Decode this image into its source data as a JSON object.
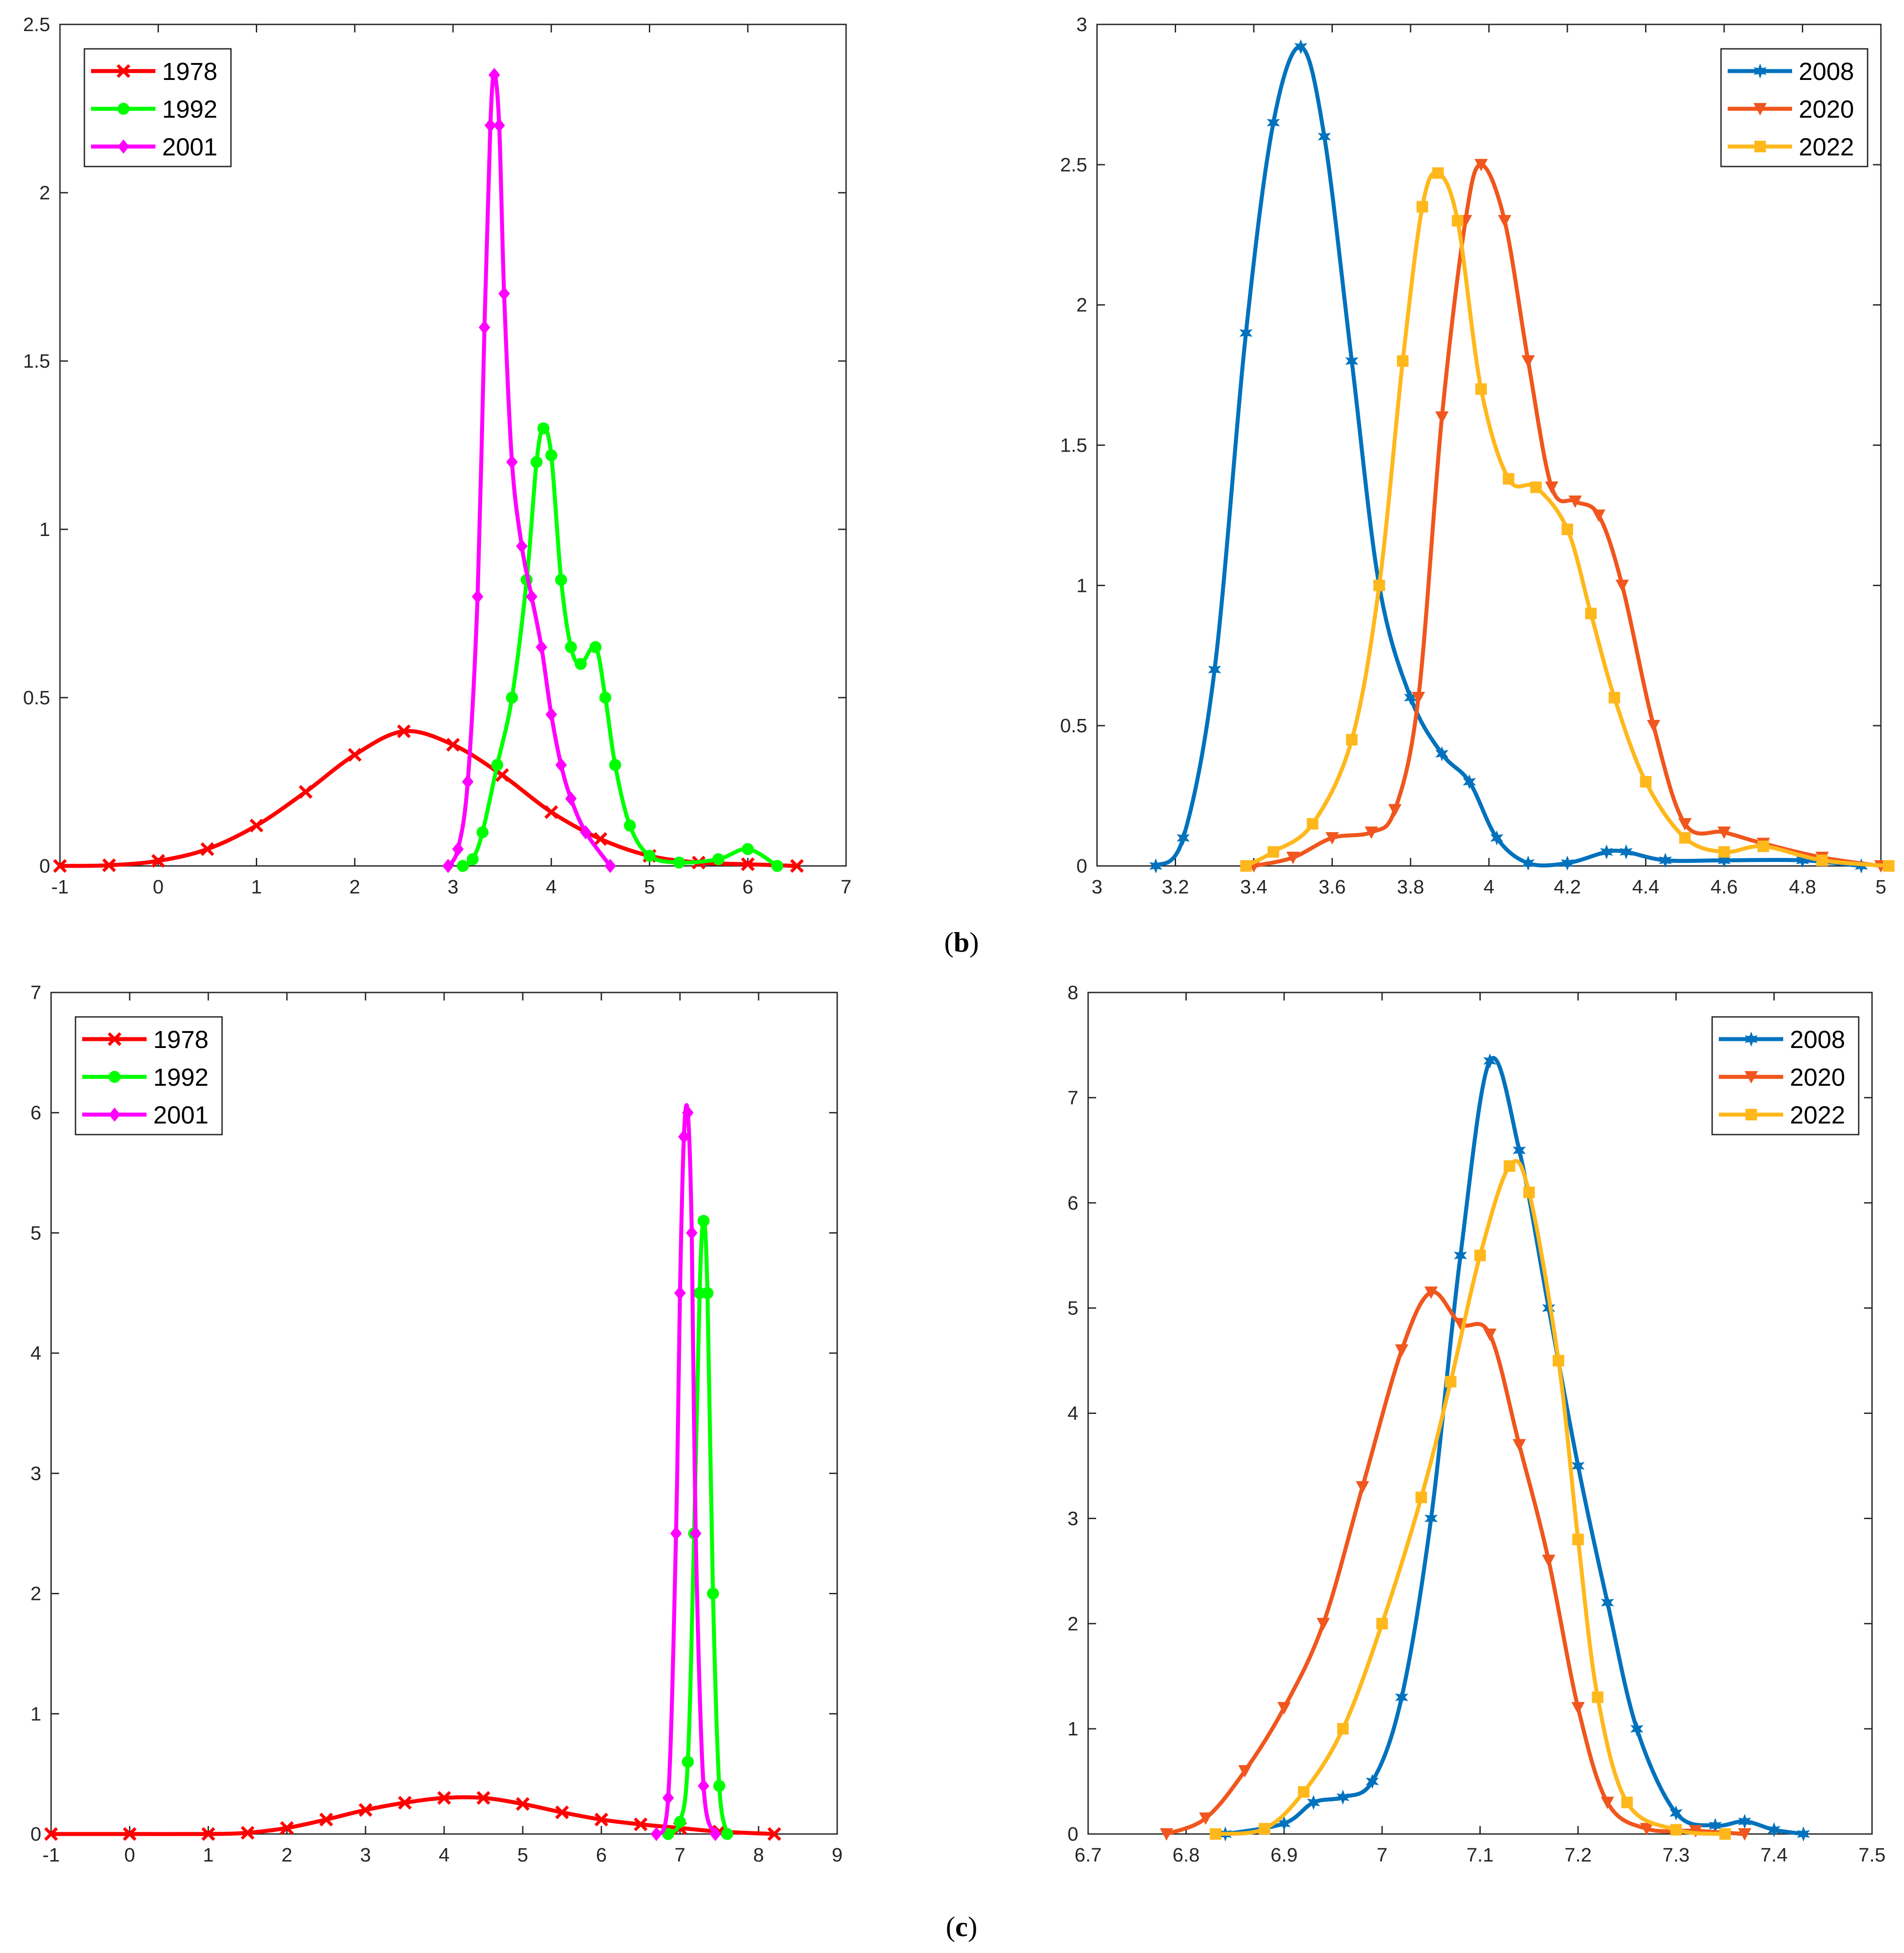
{
  "captions": {
    "b_label": "b",
    "c_label": "c"
  },
  "colors": {
    "1978": "#ff0000",
    "1992": "#00ff00",
    "2001": "#ff00ff",
    "2008": "#0072bd",
    "2020": "#f0561d",
    "2022": "#ffb81c"
  },
  "chart_data": [
    {
      "type": "line",
      "panel": "b-left",
      "title": "",
      "xlabel": "",
      "ylabel": "",
      "xlim": [
        -1,
        7
      ],
      "ylim": [
        0,
        2.5
      ],
      "xticks": [
        "-1",
        "0",
        "1",
        "2",
        "3",
        "4",
        "5",
        "6",
        "7"
      ],
      "yticks": [
        "0",
        "0.5",
        "1",
        "1.5",
        "2",
        "2.5"
      ],
      "legend_position": "top-left",
      "series": [
        {
          "name": "1978",
          "color": "#ff0000",
          "marker": "x",
          "x": [
            -1,
            -0.5,
            0,
            0.5,
            1,
            1.5,
            2,
            2.5,
            3,
            3.5,
            4,
            4.5,
            5,
            5.5,
            6,
            6.5
          ],
          "y": [
            0,
            0.002,
            0.015,
            0.05,
            0.12,
            0.22,
            0.33,
            0.4,
            0.36,
            0.27,
            0.16,
            0.08,
            0.03,
            0.01,
            0.005,
            0
          ]
        },
        {
          "name": "1992",
          "color": "#00ff00",
          "marker": "o",
          "x": [
            3.1,
            3.2,
            3.3,
            3.45,
            3.6,
            3.75,
            3.85,
            3.92,
            4.0,
            4.1,
            4.2,
            4.3,
            4.45,
            4.55,
            4.65,
            4.8,
            5.0,
            5.3,
            5.7,
            6.0,
            6.3
          ],
          "y": [
            0,
            0.02,
            0.1,
            0.3,
            0.5,
            0.85,
            1.2,
            1.3,
            1.22,
            0.85,
            0.65,
            0.6,
            0.65,
            0.5,
            0.3,
            0.12,
            0.03,
            0.01,
            0.02,
            0.05,
            0
          ]
        },
        {
          "name": "2001",
          "color": "#ff00ff",
          "marker": "d",
          "x": [
            2.95,
            3.05,
            3.15,
            3.25,
            3.32,
            3.38,
            3.42,
            3.47,
            3.52,
            3.6,
            3.7,
            3.8,
            3.9,
            4.0,
            4.1,
            4.2,
            4.35,
            4.6
          ],
          "y": [
            0,
            0.05,
            0.25,
            0.8,
            1.6,
            2.2,
            2.35,
            2.2,
            1.7,
            1.2,
            0.95,
            0.8,
            0.65,
            0.45,
            0.3,
            0.2,
            0.1,
            0
          ]
        }
      ]
    },
    {
      "type": "line",
      "panel": "b-right",
      "title": "",
      "xlabel": "",
      "ylabel": "",
      "xlim": [
        3,
        5
      ],
      "ylim": [
        0,
        3
      ],
      "xticks": [
        "3",
        "3.2",
        "3.4",
        "3.6",
        "3.8",
        "4",
        "4.2",
        "4.4",
        "4.6",
        "4.8",
        "5"
      ],
      "yticks": [
        "0",
        "0.5",
        "1",
        "1.5",
        "2",
        "2.5",
        "3"
      ],
      "legend_position": "top-right",
      "series": [
        {
          "name": "2008",
          "color": "#0072bd",
          "marker": "hexagram",
          "x": [
            3.15,
            3.22,
            3.3,
            3.38,
            3.45,
            3.52,
            3.58,
            3.65,
            3.72,
            3.8,
            3.88,
            3.95,
            4.02,
            4.1,
            4.2,
            4.3,
            4.35,
            4.45,
            4.6,
            4.8,
            4.95
          ],
          "y": [
            0,
            0.1,
            0.7,
            1.9,
            2.65,
            2.92,
            2.6,
            1.8,
            1.0,
            0.6,
            0.4,
            0.3,
            0.1,
            0.01,
            0.01,
            0.05,
            0.05,
            0.02,
            0.02,
            0.02,
            0
          ]
        },
        {
          "name": "2020",
          "color": "#f0561d",
          "marker": "v",
          "x": [
            3.4,
            3.5,
            3.6,
            3.7,
            3.76,
            3.82,
            3.88,
            3.94,
            3.98,
            4.04,
            4.1,
            4.16,
            4.22,
            4.28,
            4.34,
            4.42,
            4.5,
            4.6,
            4.7,
            4.85,
            5.0
          ],
          "y": [
            0,
            0.03,
            0.1,
            0.12,
            0.2,
            0.6,
            1.6,
            2.3,
            2.5,
            2.3,
            1.8,
            1.35,
            1.3,
            1.25,
            1.0,
            0.5,
            0.15,
            0.12,
            0.08,
            0.03,
            0
          ]
        },
        {
          "name": "2022",
          "color": "#ffb81c",
          "marker": "s",
          "x": [
            3.38,
            3.45,
            3.55,
            3.65,
            3.72,
            3.78,
            3.83,
            3.87,
            3.92,
            3.98,
            4.05,
            4.12,
            4.2,
            4.26,
            4.32,
            4.4,
            4.5,
            4.6,
            4.7,
            4.85,
            5.02
          ],
          "y": [
            0,
            0.05,
            0.15,
            0.45,
            1.0,
            1.8,
            2.35,
            2.47,
            2.3,
            1.7,
            1.38,
            1.35,
            1.2,
            0.9,
            0.6,
            0.3,
            0.1,
            0.05,
            0.07,
            0.02,
            0
          ]
        }
      ]
    },
    {
      "type": "line",
      "panel": "c-left",
      "title": "",
      "xlabel": "",
      "ylabel": "",
      "xlim": [
        -1,
        9
      ],
      "ylim": [
        0,
        7
      ],
      "xticks": [
        "-1",
        "0",
        "1",
        "2",
        "3",
        "4",
        "5",
        "6",
        "7",
        "8",
        "9"
      ],
      "yticks": [
        "0",
        "1",
        "2",
        "3",
        "4",
        "5",
        "6",
        "7"
      ],
      "legend_position": "top-left",
      "series": [
        {
          "name": "1978",
          "color": "#ff0000",
          "marker": "x",
          "x": [
            -1,
            0,
            1,
            1.5,
            2,
            2.5,
            3,
            3.5,
            4,
            4.5,
            5,
            5.5,
            6,
            6.5,
            7,
            7.5,
            8.2
          ],
          "y": [
            0,
            0,
            0,
            0.01,
            0.05,
            0.12,
            0.2,
            0.26,
            0.3,
            0.3,
            0.25,
            0.18,
            0.12,
            0.08,
            0.05,
            0.02,
            0
          ]
        },
        {
          "name": "1992",
          "color": "#00ff00",
          "marker": "o",
          "x": [
            6.85,
            7.0,
            7.1,
            7.18,
            7.25,
            7.3,
            7.35,
            7.42,
            7.5,
            7.6
          ],
          "y": [
            0,
            0.1,
            0.6,
            2.5,
            4.5,
            5.1,
            4.5,
            2.0,
            0.4,
            0
          ]
        },
        {
          "name": "2001",
          "color": "#ff00ff",
          "marker": "d",
          "x": [
            6.7,
            6.85,
            6.95,
            7.0,
            7.05,
            7.1,
            7.15,
            7.2,
            7.3,
            7.45
          ],
          "y": [
            0,
            0.3,
            2.5,
            4.5,
            5.8,
            6.0,
            5.0,
            2.5,
            0.4,
            0
          ]
        }
      ]
    },
    {
      "type": "line",
      "panel": "c-right",
      "title": "",
      "xlabel": "",
      "ylabel": "",
      "xlim": [
        6.7,
        7.5
      ],
      "ylim": [
        0,
        8
      ],
      "xticks": [
        "6.7",
        "6.8",
        "6.9",
        "7",
        "7.1",
        "7.2",
        "7.3",
        "7.4",
        "7.5"
      ],
      "yticks": [
        "0",
        "1",
        "2",
        "3",
        "4",
        "5",
        "6",
        "7",
        "8"
      ],
      "legend_position": "top-right",
      "series": [
        {
          "name": "2008",
          "color": "#0072bd",
          "marker": "hexagram",
          "x": [
            6.84,
            6.9,
            6.93,
            6.96,
            6.99,
            7.02,
            7.05,
            7.08,
            7.11,
            7.14,
            7.17,
            7.2,
            7.23,
            7.26,
            7.3,
            7.34,
            7.37,
            7.4,
            7.43
          ],
          "y": [
            0,
            0.1,
            0.3,
            0.35,
            0.5,
            1.3,
            3.0,
            5.5,
            7.35,
            6.5,
            5.0,
            3.5,
            2.2,
            1.0,
            0.2,
            0.08,
            0.12,
            0.04,
            0
          ]
        },
        {
          "name": "2020",
          "color": "#f0561d",
          "marker": "v",
          "x": [
            6.78,
            6.82,
            6.86,
            6.9,
            6.94,
            6.98,
            7.02,
            7.05,
            7.08,
            7.11,
            7.14,
            7.17,
            7.2,
            7.23,
            7.27,
            7.32,
            7.37
          ],
          "y": [
            0,
            0.15,
            0.6,
            1.2,
            2.0,
            3.3,
            4.6,
            5.15,
            4.85,
            4.75,
            3.7,
            2.6,
            1.2,
            0.3,
            0.05,
            0.03,
            0
          ]
        },
        {
          "name": "2022",
          "color": "#ffb81c",
          "marker": "s",
          "x": [
            6.83,
            6.88,
            6.92,
            6.96,
            7.0,
            7.04,
            7.07,
            7.1,
            7.13,
            7.15,
            7.18,
            7.2,
            7.22,
            7.25,
            7.3,
            7.35
          ],
          "y": [
            0,
            0.05,
            0.4,
            1.0,
            2.0,
            3.2,
            4.3,
            5.5,
            6.35,
            6.1,
            4.5,
            2.8,
            1.3,
            0.3,
            0.04,
            0
          ]
        }
      ]
    }
  ]
}
